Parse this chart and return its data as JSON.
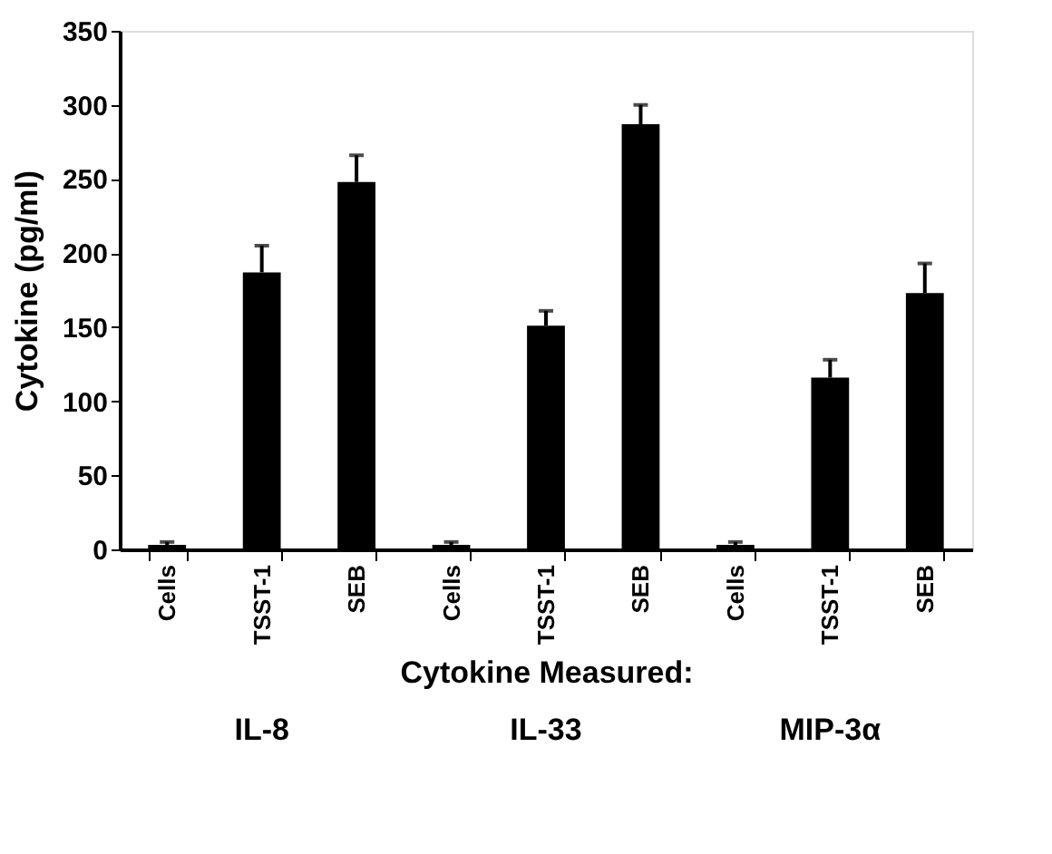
{
  "chart_data": {
    "type": "bar",
    "xlabel": "Cytokine Measured:",
    "ylabel": "Cytokine (pg/ml)",
    "categories": [
      "Cells",
      "TSST-1",
      "SEB",
      "Cells",
      "TSST-1",
      "SEB",
      "Cells",
      "TSST-1",
      "SEB"
    ],
    "values": [
      3,
      187,
      248,
      3,
      151,
      287,
      3,
      116,
      173
    ],
    "errors": [
      [
        3,
        5
      ],
      [
        187,
        205
      ],
      [
        248,
        266
      ],
      [
        3,
        5
      ],
      [
        151,
        161
      ],
      [
        287,
        300
      ],
      [
        3,
        5
      ],
      [
        116,
        128
      ],
      [
        173,
        193
      ]
    ],
    "color": "#000000",
    "annotations": [
      "IL-8",
      "IL-33",
      "MIP-3α"
    ],
    "ylim": [
      0,
      350
    ],
    "yticks": [
      0,
      50,
      100,
      150,
      200,
      250,
      300,
      350
    ],
    "grid": false
  }
}
